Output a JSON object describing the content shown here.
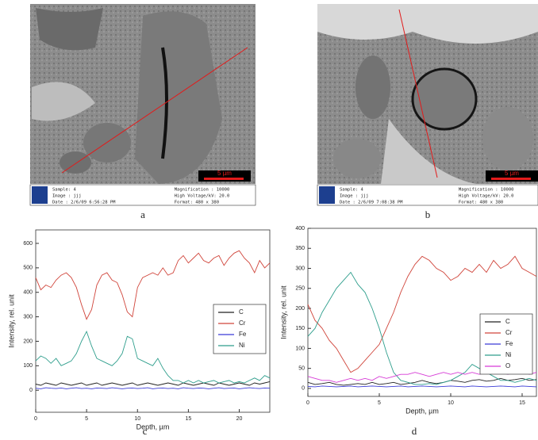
{
  "panels": [
    {
      "label": "a",
      "scale_bar": "5 µm",
      "info_left": [
        "Sample: 4",
        "Image : jjj",
        "Date : 2/6/09 6:56:28 PM"
      ],
      "info_right": [
        "Magnification : 10000",
        "High Voltage/kV: 20.0",
        "Format: 480 x 380"
      ]
    },
    {
      "label": "b",
      "scale_bar": "5 µm",
      "info_left": [
        "Sample: 4",
        "Image : jjj",
        "Date : 2/6/09 7:08:38 PM"
      ],
      "info_right": [
        "Magnification : 10000",
        "High Voltage/kV: 20.0",
        "Format: 480 x 380"
      ]
    }
  ],
  "chart_data": [
    {
      "type": "line",
      "label": "c",
      "x_label": "Depth, µm",
      "y_label": "Intensity, rel. unit",
      "xlim": [
        0,
        23
      ],
      "xticks": [
        0,
        5,
        10,
        15,
        20
      ],
      "ylim": [
        -90,
        655
      ],
      "yticks": [
        0,
        100,
        200,
        300,
        400,
        500,
        600
      ],
      "legend": "right",
      "x": [
        0,
        0.5,
        1,
        1.5,
        2,
        2.5,
        3,
        3.5,
        4,
        4.5,
        5,
        5.5,
        6,
        6.5,
        7,
        7.5,
        8,
        8.5,
        9,
        9.5,
        10,
        10.5,
        11,
        11.5,
        12,
        12.5,
        13,
        13.5,
        14,
        14.5,
        15,
        15.5,
        16,
        16.5,
        17,
        17.5,
        18,
        18.5,
        19,
        19.5,
        20,
        20.5,
        21,
        21.5,
        22,
        22.5,
        23
      ],
      "series": [
        {
          "name": "C",
          "color": "#222222",
          "values": [
            25,
            20,
            30,
            25,
            20,
            30,
            25,
            20,
            25,
            30,
            20,
            25,
            30,
            20,
            25,
            30,
            25,
            20,
            25,
            30,
            20,
            25,
            30,
            25,
            20,
            25,
            30,
            25,
            20,
            30,
            25,
            20,
            25,
            30,
            25,
            20,
            30,
            25,
            20,
            25,
            30,
            25,
            20,
            30,
            25,
            30,
            35
          ]
        },
        {
          "name": "Cr",
          "color": "#d0443a",
          "values": [
            460,
            410,
            430,
            420,
            450,
            470,
            480,
            460,
            420,
            350,
            290,
            330,
            430,
            470,
            480,
            450,
            440,
            390,
            320,
            300,
            420,
            460,
            470,
            480,
            470,
            500,
            470,
            480,
            530,
            550,
            520,
            540,
            560,
            530,
            520,
            540,
            550,
            510,
            540,
            560,
            570,
            540,
            520,
            480,
            530,
            500,
            520
          ]
        },
        {
          "name": "Fe",
          "color": "#3b3bd6",
          "values": [
            8,
            6,
            10,
            8,
            7,
            9,
            6,
            8,
            10,
            7,
            8,
            6,
            9,
            8,
            7,
            10,
            8,
            6,
            8,
            9,
            7,
            8,
            10,
            6,
            8,
            9,
            7,
            8,
            6,
            10,
            8,
            7,
            9,
            8,
            6,
            8,
            10,
            7,
            8,
            9,
            6,
            8,
            10,
            8,
            7,
            9,
            8
          ]
        },
        {
          "name": "Ni",
          "color": "#2e9e8c",
          "values": [
            120,
            140,
            130,
            110,
            130,
            100,
            110,
            120,
            150,
            200,
            240,
            180,
            130,
            120,
            110,
            100,
            120,
            150,
            220,
            210,
            130,
            120,
            110,
            100,
            130,
            90,
            60,
            40,
            40,
            30,
            40,
            30,
            40,
            30,
            35,
            40,
            30,
            35,
            40,
            30,
            35,
            30,
            40,
            50,
            40,
            60,
            50
          ]
        }
      ]
    },
    {
      "type": "line",
      "label": "d",
      "x_label": "Depth, µm",
      "y_label": "Intensity, rel. unit",
      "xlim": [
        0,
        16
      ],
      "xticks": [
        0,
        5,
        10,
        15
      ],
      "ylim": [
        -20,
        400
      ],
      "yticks": [
        0,
        50,
        100,
        150,
        200,
        250,
        300,
        350,
        400
      ],
      "legend": "right",
      "x": [
        0,
        0.5,
        1,
        1.5,
        2,
        2.5,
        3,
        3.5,
        4,
        4.5,
        5,
        5.5,
        6,
        6.5,
        7,
        7.5,
        8,
        8.5,
        9,
        9.5,
        10,
        10.5,
        11,
        11.5,
        12,
        12.5,
        13,
        13.5,
        14,
        14.5,
        15,
        15.5,
        16
      ],
      "series": [
        {
          "name": "C",
          "color": "#222222",
          "values": [
            15,
            10,
            12,
            15,
            10,
            8,
            10,
            12,
            10,
            15,
            10,
            12,
            15,
            10,
            12,
            15,
            20,
            15,
            12,
            15,
            20,
            18,
            15,
            20,
            22,
            18,
            20,
            25,
            20,
            22,
            25,
            20,
            22
          ]
        },
        {
          "name": "Cr",
          "color": "#d0443a",
          "values": [
            210,
            170,
            150,
            120,
            100,
            70,
            40,
            50,
            70,
            90,
            110,
            150,
            190,
            240,
            280,
            310,
            330,
            320,
            300,
            290,
            270,
            280,
            300,
            290,
            310,
            290,
            320,
            300,
            310,
            330,
            300,
            290,
            280
          ]
        },
        {
          "name": "Fe",
          "color": "#3b3bd6",
          "values": [
            5,
            4,
            6,
            5,
            4,
            5,
            6,
            4,
            5,
            6,
            5,
            4,
            5,
            6,
            4,
            5,
            6,
            5,
            4,
            5,
            6,
            5,
            4,
            6,
            5,
            4,
            5,
            6,
            5,
            4,
            6,
            5,
            4
          ]
        },
        {
          "name": "Ni",
          "color": "#2e9e8c",
          "values": [
            130,
            150,
            190,
            220,
            250,
            270,
            290,
            260,
            240,
            200,
            150,
            90,
            40,
            20,
            15,
            10,
            10,
            12,
            10,
            15,
            20,
            30,
            40,
            60,
            50,
            40,
            30,
            20,
            20,
            15,
            20,
            25,
            20
          ]
        },
        {
          "name": "O",
          "color": "#d63bd6",
          "values": [
            30,
            25,
            20,
            20,
            15,
            20,
            25,
            20,
            25,
            20,
            30,
            25,
            30,
            35,
            35,
            40,
            35,
            30,
            35,
            40,
            35,
            40,
            35,
            40,
            35,
            40,
            45,
            40,
            35,
            40,
            45,
            35,
            40
          ]
        }
      ]
    }
  ]
}
